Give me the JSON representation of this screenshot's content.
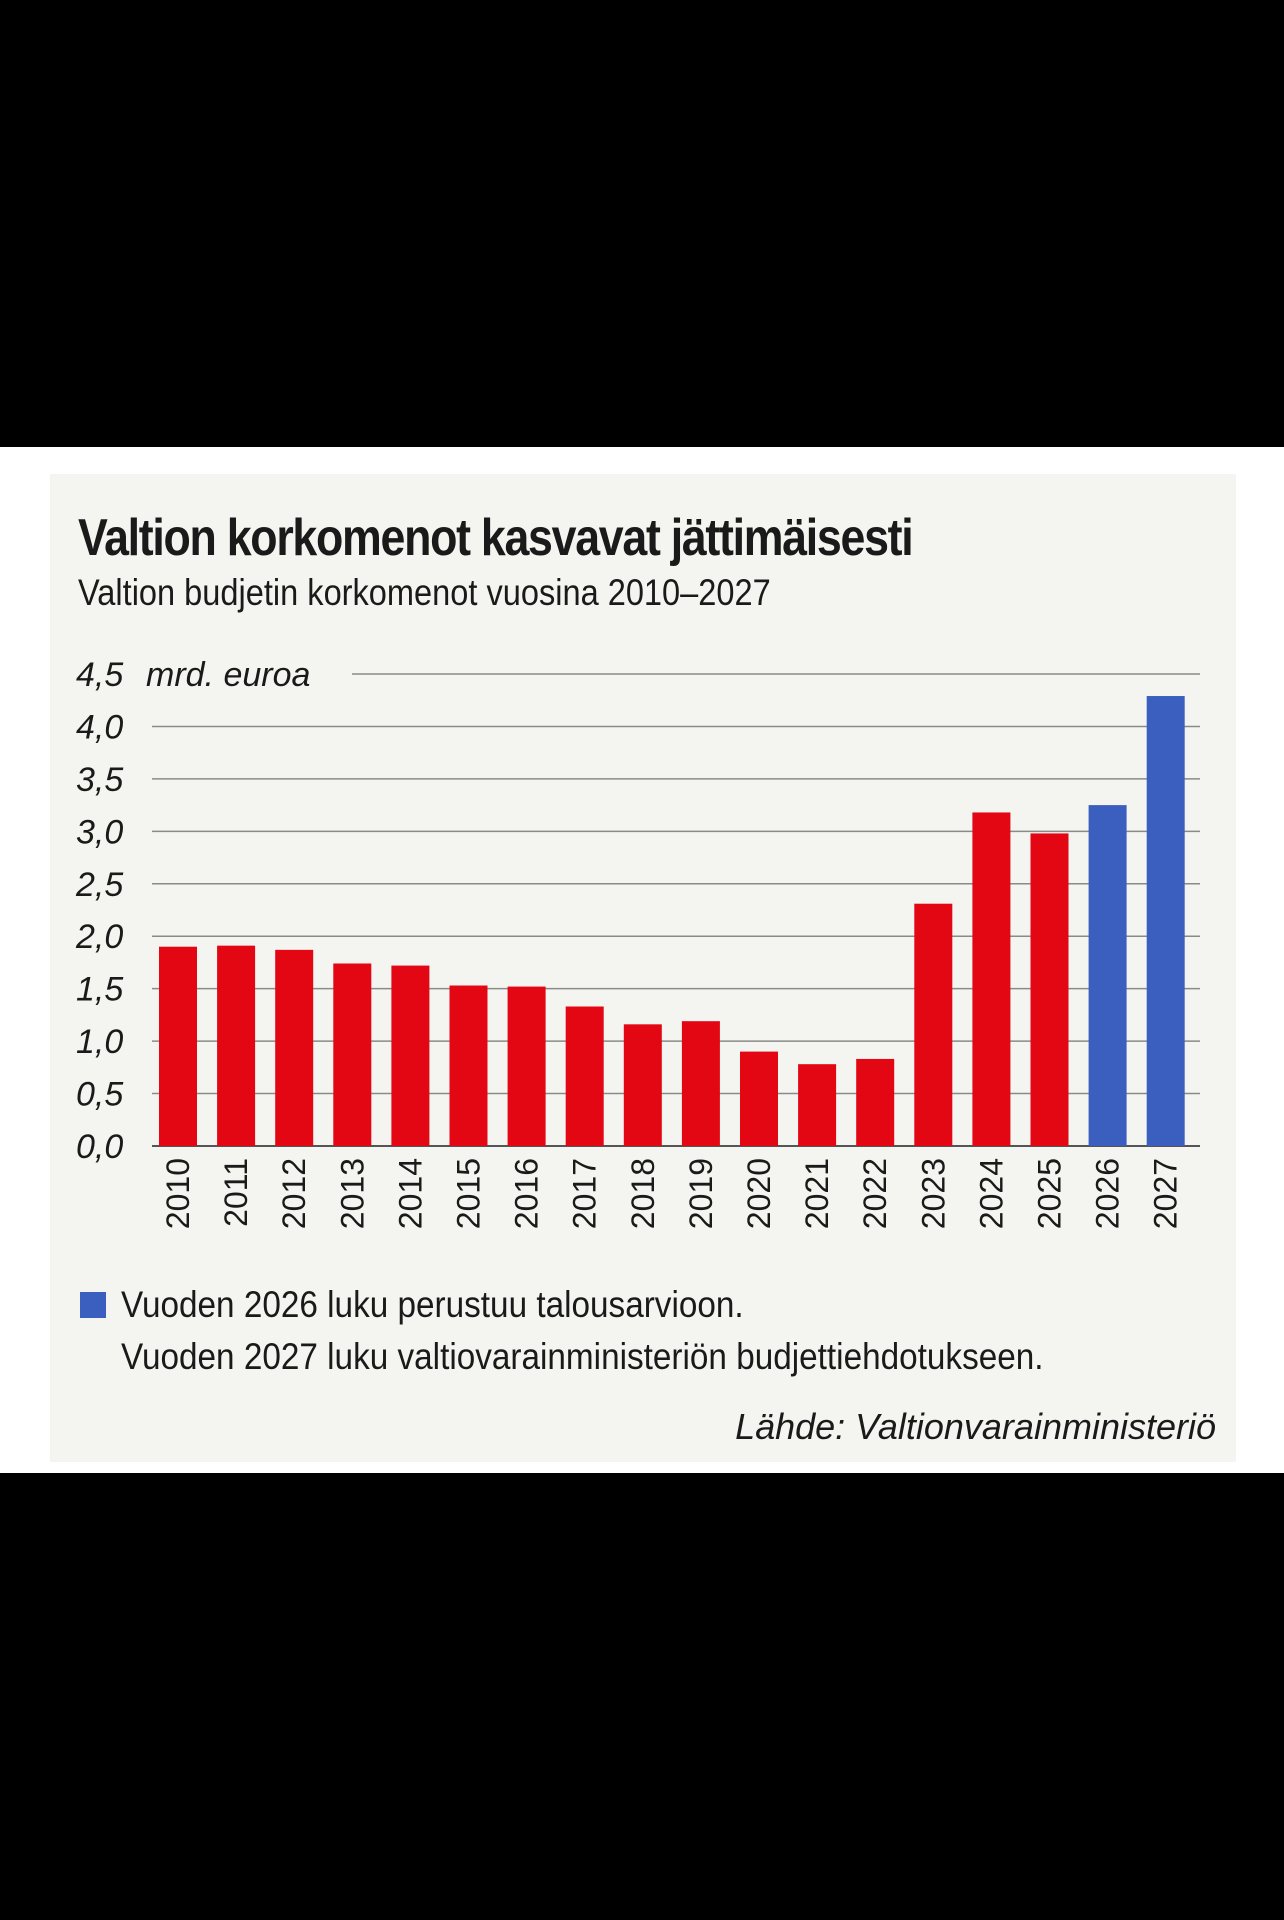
{
  "title": "Valtion korkomenot kasvavat jättimäisesti",
  "subtitle": "Valtion budjetin korkomenot vuosina 2010–2027",
  "legend": {
    "line1": "Vuoden 2026 luku perustuu talousarvioon.",
    "line2": "Vuoden 2027 luku valtiovarainministeriön budjettiehdotukseen."
  },
  "source": "Lähde: Valtionvarainministeriö",
  "colors": {
    "actual": "#e30613",
    "forecast": "#3a5fbf",
    "grid": "#8a8a8a",
    "panel": "#f4f4f1"
  },
  "chart_data": {
    "type": "bar",
    "ylabel": "mrd. euroa",
    "ylim": [
      0,
      4.5
    ],
    "yticks": [
      "0,0",
      "0,5",
      "1,0",
      "1,5",
      "2,0",
      "2,5",
      "3,0",
      "3,5",
      "4,0",
      "4,5"
    ],
    "categories": [
      "2010",
      "2011",
      "2012",
      "2013",
      "2014",
      "2015",
      "2016",
      "2017",
      "2018",
      "2019",
      "2020",
      "2021",
      "2022",
      "2023",
      "2024",
      "2025",
      "2026",
      "2027"
    ],
    "values": [
      1.9,
      1.91,
      1.87,
      1.74,
      1.72,
      1.53,
      1.52,
      1.33,
      1.16,
      1.19,
      0.9,
      0.78,
      0.83,
      2.31,
      3.18,
      2.98,
      3.25,
      4.29
    ],
    "forecast_categories": [
      "2026",
      "2027"
    ],
    "grid": true
  }
}
